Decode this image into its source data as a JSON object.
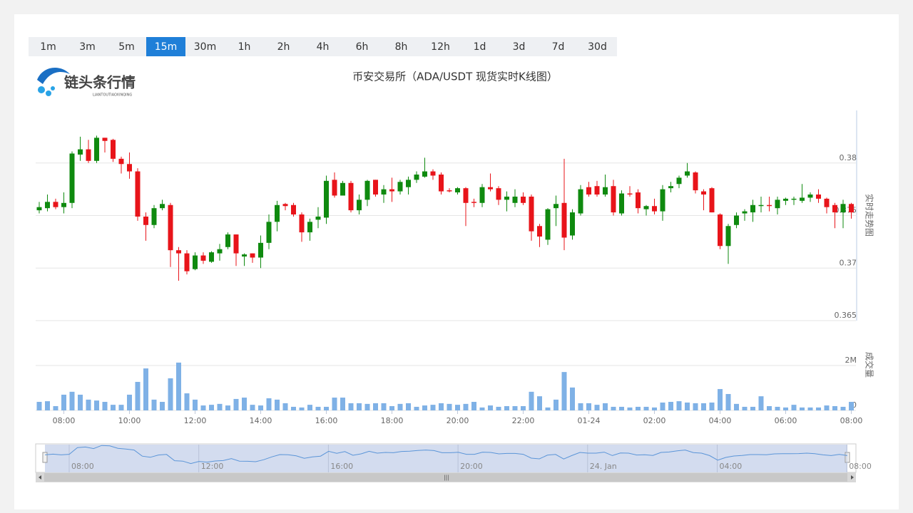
{
  "tabs": [
    "1m",
    "3m",
    "5m",
    "15m",
    "30m",
    "1h",
    "2h",
    "4h",
    "6h",
    "8h",
    "12h",
    "1d",
    "3d",
    "7d",
    "30d"
  ],
  "active_tab": 3,
  "logo": {
    "name": "链头条行情",
    "subtitle": "LIANTOUTIAOXINQING"
  },
  "navigator": {
    "labels": [
      "08:00",
      "12:00",
      "16:00",
      "20:00",
      "24. Jan",
      "04:00",
      "08:00"
    ]
  },
  "chart_data": [
    {
      "type": "candlestick",
      "title": "币安交易所（ADA/USDT 现货实时K线图）",
      "y_label": "实时走势图",
      "up_color": "#0f8a0f",
      "down_color": "#e8141a",
      "categories": [
        null,
        null,
        null,
        "08:00",
        null,
        null,
        null,
        null,
        null,
        null,
        null,
        "10:00",
        null,
        null,
        null,
        null,
        null,
        null,
        null,
        "12:00",
        null,
        null,
        null,
        null,
        null,
        null,
        null,
        "14:00",
        null,
        null,
        null,
        null,
        null,
        null,
        null,
        "16:00",
        null,
        null,
        null,
        null,
        null,
        null,
        null,
        "18:00",
        null,
        null,
        null,
        null,
        null,
        null,
        null,
        "20:00",
        null,
        null,
        null,
        null,
        null,
        null,
        null,
        "22:00",
        null,
        null,
        null,
        null,
        null,
        null,
        null,
        "01-24",
        null,
        null,
        null,
        null,
        null,
        null,
        null,
        "02:00",
        null,
        null,
        null,
        null,
        null,
        null,
        null,
        "04:00",
        null,
        null,
        null,
        null,
        null,
        null,
        null,
        "06:00",
        null,
        null,
        null,
        null,
        null,
        null,
        null,
        "08:00"
      ],
      "open": [
        0.3755,
        0.3757,
        0.3763,
        0.3758,
        0.3762,
        0.3808,
        0.3813,
        0.3802,
        0.3824,
        0.3822,
        0.3804,
        0.3799,
        0.3792,
        0.3749,
        0.3741,
        0.3757,
        0.376,
        0.3717,
        0.3714,
        0.3699,
        0.3712,
        0.3706,
        0.3714,
        0.372,
        0.3732,
        0.3711,
        0.3714,
        0.371,
        0.3724,
        0.3744,
        0.3761,
        0.376,
        0.3751,
        0.3734,
        0.3746,
        0.3748,
        0.3784,
        0.3769,
        0.3781,
        0.3755,
        0.3765,
        0.3784,
        0.377,
        0.3775,
        0.3773,
        0.3777,
        0.3784,
        0.3787,
        0.3792,
        0.3789,
        0.3774,
        0.3772,
        0.3776,
        0.3763,
        0.3762,
        0.3777,
        0.3776,
        0.3765,
        0.3762,
        0.3768,
        0.3768,
        0.374,
        0.3727,
        0.3757,
        0.3762,
        0.3731,
        0.3752,
        0.3777,
        0.3778,
        0.377,
        0.3778,
        0.3752,
        0.3771,
        0.3772,
        0.3756,
        0.3759,
        0.3754,
        0.3776,
        0.378,
        0.3788,
        0.3791,
        0.3773,
        0.3776,
        0.3751,
        0.3721,
        0.3741,
        0.3752,
        0.3753,
        0.3759,
        0.376,
        0.3757,
        0.3764,
        0.3765,
        0.3764,
        0.3767,
        0.377,
        0.3766,
        0.376,
        0.3753,
        0.3761
      ],
      "close": [
        0.3758,
        0.3763,
        0.3758,
        0.3762,
        0.3809,
        0.3813,
        0.3802,
        0.3824,
        0.3821,
        0.3804,
        0.3799,
        0.3792,
        0.3749,
        0.3741,
        0.3757,
        0.3761,
        0.3717,
        0.3714,
        0.3697,
        0.3712,
        0.3707,
        0.3715,
        0.3718,
        0.3732,
        0.3714,
        0.3713,
        0.371,
        0.3724,
        0.3744,
        0.376,
        0.3759,
        0.3751,
        0.3734,
        0.3744,
        0.3749,
        0.3783,
        0.3769,
        0.3781,
        0.3755,
        0.3765,
        0.3783,
        0.377,
        0.3775,
        0.3773,
        0.3782,
        0.3784,
        0.3789,
        0.3792,
        0.3788,
        0.3773,
        0.3773,
        0.3776,
        0.3762,
        0.3762,
        0.3777,
        0.3775,
        0.3765,
        0.3768,
        0.3768,
        0.3762,
        0.3735,
        0.373,
        0.3756,
        0.3761,
        0.3729,
        0.3753,
        0.3775,
        0.377,
        0.377,
        0.3777,
        0.3753,
        0.3771,
        0.377,
        0.3757,
        0.3759,
        0.3754,
        0.3775,
        0.3778,
        0.3786,
        0.3792,
        0.3774,
        0.377,
        0.3753,
        0.3721,
        0.374,
        0.375,
        0.3754,
        0.376,
        0.376,
        0.3759,
        0.3765,
        0.3766,
        0.3766,
        0.3767,
        0.377,
        0.3766,
        0.3758,
        0.3753,
        0.3761,
        0.3753
      ],
      "high": [
        0.3763,
        0.377,
        0.3766,
        0.3772,
        0.3811,
        0.3825,
        0.3822,
        0.3826,
        0.3824,
        0.3823,
        0.3806,
        0.381,
        0.3795,
        0.3753,
        0.376,
        0.3765,
        0.3762,
        0.372,
        0.3717,
        0.3715,
        0.3715,
        0.3716,
        0.3723,
        0.3734,
        0.3732,
        0.3714,
        0.3714,
        0.3731,
        0.3751,
        0.3764,
        0.3762,
        0.3762,
        0.3753,
        0.3747,
        0.3758,
        0.3788,
        0.3791,
        0.3783,
        0.3783,
        0.377,
        0.3784,
        0.3784,
        0.3779,
        0.3786,
        0.3784,
        0.3787,
        0.3792,
        0.3805,
        0.3794,
        0.3791,
        0.3776,
        0.3777,
        0.3777,
        0.3766,
        0.378,
        0.379,
        0.3778,
        0.3773,
        0.3775,
        0.3772,
        0.377,
        0.3742,
        0.3757,
        0.3769,
        0.3804,
        0.3756,
        0.3779,
        0.3782,
        0.3783,
        0.3789,
        0.3784,
        0.3774,
        0.3778,
        0.3775,
        0.376,
        0.3766,
        0.3779,
        0.3782,
        0.3788,
        0.38,
        0.3792,
        0.3775,
        0.3777,
        0.3752,
        0.3742,
        0.3753,
        0.3756,
        0.3765,
        0.3768,
        0.3768,
        0.3768,
        0.3767,
        0.3768,
        0.378,
        0.3772,
        0.3775,
        0.3767,
        0.3762,
        0.3765,
        0.3762
      ],
      "low": [
        0.3752,
        0.3754,
        0.3756,
        0.3752,
        0.3757,
        0.3802,
        0.38,
        0.38,
        0.381,
        0.3801,
        0.379,
        0.3785,
        0.3745,
        0.3726,
        0.3738,
        0.3755,
        0.3701,
        0.3688,
        0.3694,
        0.3698,
        0.3704,
        0.3705,
        0.3707,
        0.3718,
        0.3702,
        0.3702,
        0.3705,
        0.37,
        0.3718,
        0.3735,
        0.3755,
        0.3749,
        0.3725,
        0.3726,
        0.3738,
        0.3742,
        0.3767,
        0.3769,
        0.3753,
        0.3751,
        0.3759,
        0.3768,
        0.3762,
        0.3763,
        0.377,
        0.377,
        0.3781,
        0.3786,
        0.3784,
        0.377,
        0.3772,
        0.377,
        0.374,
        0.3758,
        0.3758,
        0.3773,
        0.376,
        0.3754,
        0.3758,
        0.376,
        0.3726,
        0.372,
        0.3722,
        0.374,
        0.3717,
        0.3727,
        0.375,
        0.3768,
        0.3768,
        0.3768,
        0.375,
        0.375,
        0.3768,
        0.3752,
        0.375,
        0.3751,
        0.3745,
        0.3772,
        0.3776,
        0.3786,
        0.3771,
        0.3755,
        0.3753,
        0.3718,
        0.3704,
        0.3738,
        0.3745,
        0.3744,
        0.3753,
        0.3754,
        0.3751,
        0.376,
        0.376,
        0.3762,
        0.3763,
        0.3762,
        0.3752,
        0.3738,
        0.3738,
        0.3747
      ],
      "ylim": [
        0.365,
        0.385
      ],
      "yticks": [
        0.365,
        0.37,
        0.375,
        0.38
      ],
      "grid": true
    },
    {
      "type": "bar",
      "y_label": "成交量",
      "color": "#7fb1e6",
      "values": [
        380000,
        410000,
        190000,
        700000,
        830000,
        700000,
        480000,
        440000,
        380000,
        250000,
        250000,
        700000,
        1270000,
        1870000,
        480000,
        380000,
        1430000,
        2130000,
        760000,
        480000,
        220000,
        250000,
        290000,
        220000,
        510000,
        570000,
        250000,
        220000,
        540000,
        480000,
        320000,
        160000,
        130000,
        250000,
        160000,
        160000,
        570000,
        570000,
        320000,
        320000,
        290000,
        320000,
        320000,
        190000,
        290000,
        320000,
        160000,
        220000,
        250000,
        320000,
        290000,
        250000,
        290000,
        380000,
        130000,
        220000,
        160000,
        190000,
        190000,
        190000,
        830000,
        630000,
        130000,
        480000,
        1710000,
        1020000,
        320000,
        320000,
        250000,
        320000,
        160000,
        160000,
        130000,
        160000,
        160000,
        130000,
        350000,
        380000,
        410000,
        350000,
        320000,
        320000,
        350000,
        950000,
        730000,
        290000,
        160000,
        160000,
        630000,
        190000,
        160000,
        130000,
        250000,
        130000,
        130000,
        130000,
        220000,
        190000,
        160000,
        380000
      ],
      "ylim": [
        0,
        4000000
      ],
      "yticks": [
        0,
        {
          "value": 2000000,
          "label": "2M"
        }
      ],
      "grid": true
    }
  ]
}
